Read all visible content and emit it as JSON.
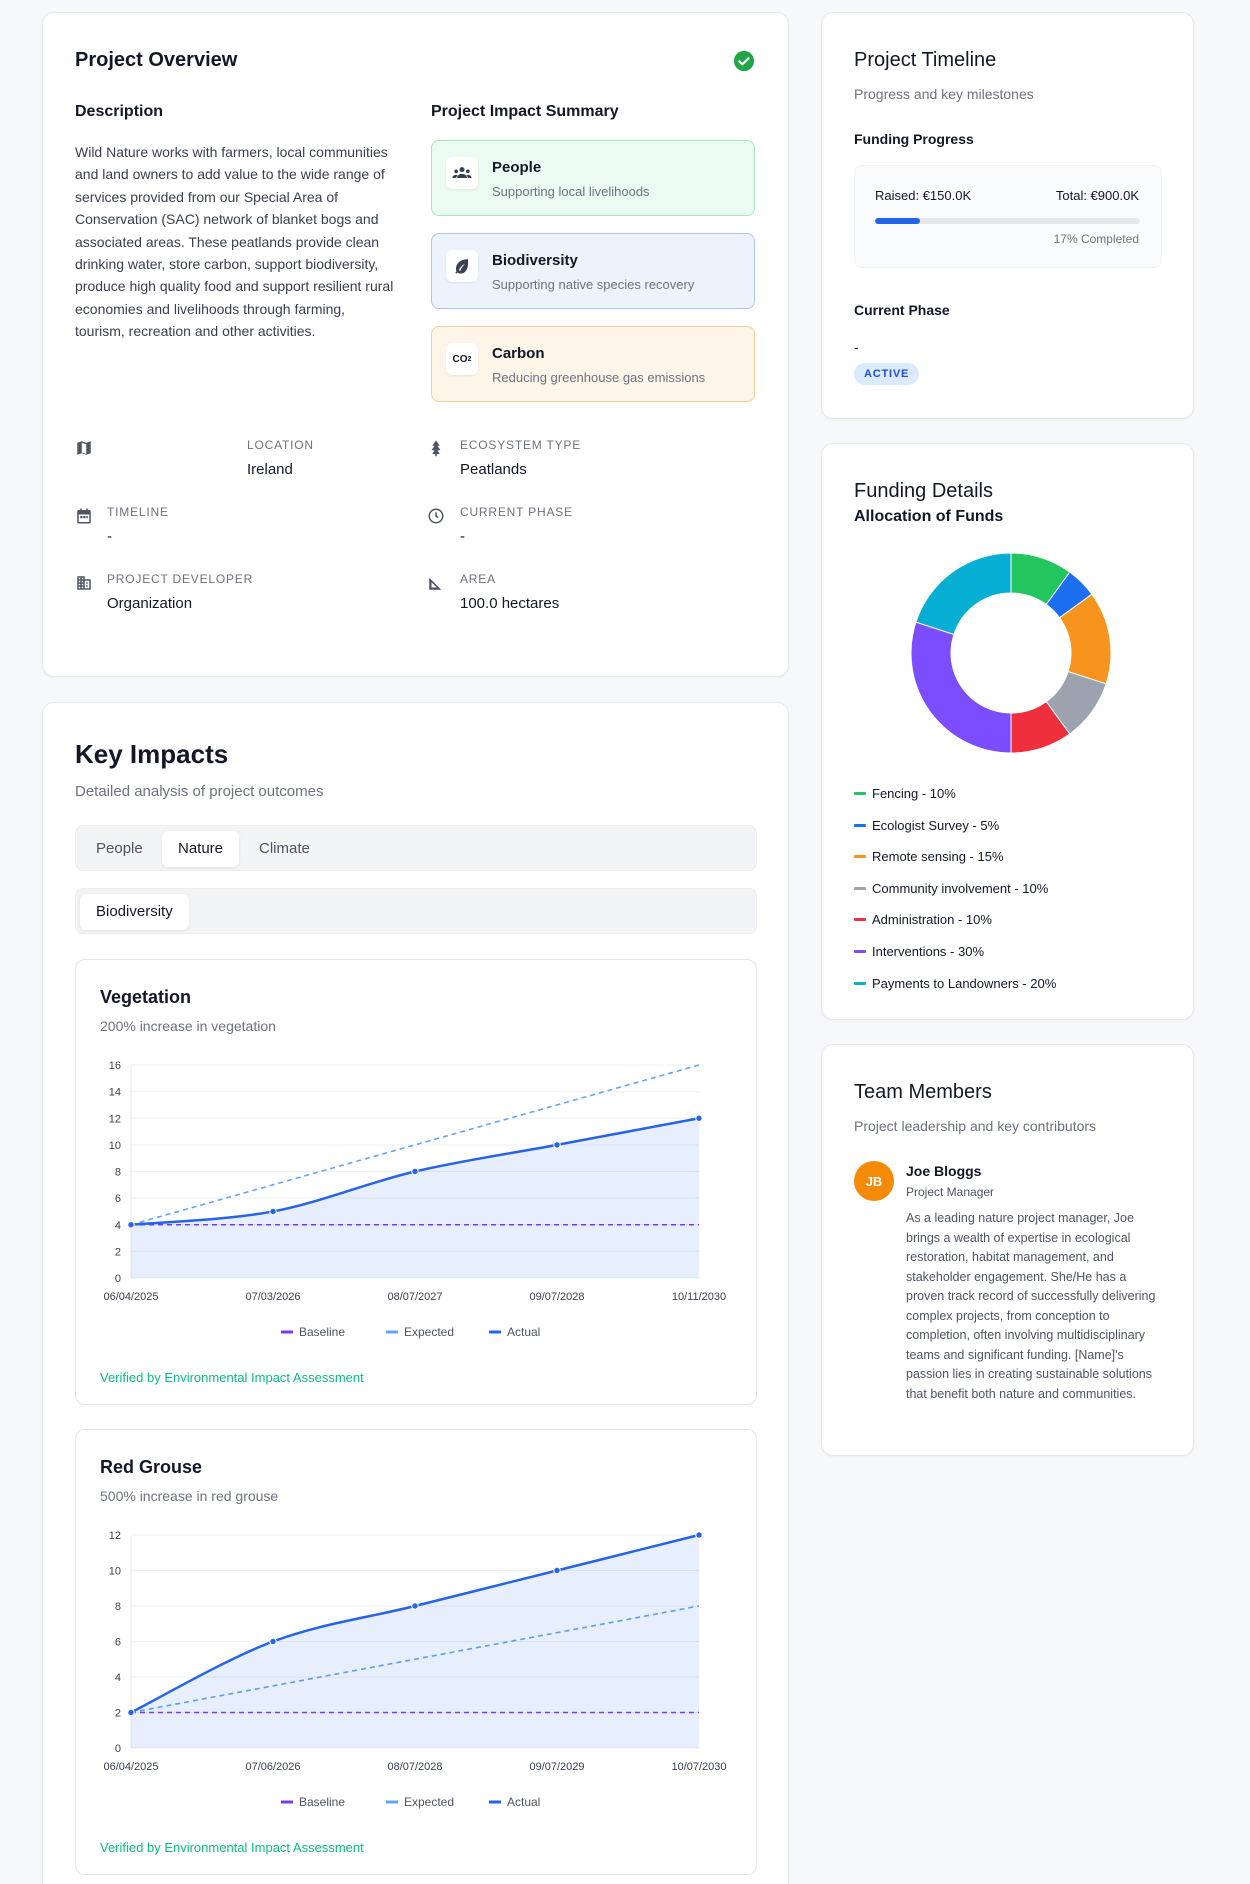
{
  "overview": {
    "title": "Project Overview",
    "description_heading": "Description",
    "description": "Wild Nature works with farmers, local communities and land owners to add value to the wide range of services provided from our Special Area of Conservation (SAC) network of blanket bogs and associated areas. These peatlands provide clean drinking water, store carbon, support biodiversity, produce high quality food and support resilient rural economies and livelihoods through farming, tourism, recreation and other activities.",
    "impact_heading": "Project Impact Summary",
    "impacts": [
      {
        "label": "People",
        "sub": "Supporting local livelihoods",
        "icon": "people-icon"
      },
      {
        "label": "Biodiversity",
        "sub": "Supporting native species recovery",
        "icon": "leaf-icon"
      },
      {
        "label": "Carbon",
        "sub": "Reducing greenhouse gas emissions",
        "icon": "co2-icon"
      }
    ],
    "info": {
      "location_label": "LOCATION",
      "location": "Ireland",
      "ecosystem_label": "ECOSYSTEM TYPE",
      "ecosystem": "Peatlands",
      "timeline_label": "TIMELINE",
      "timeline": "-",
      "phase_label": "CURRENT PHASE",
      "phase": "-",
      "developer_label": "PROJECT DEVELOPER",
      "developer": "Organization",
      "area_label": "AREA",
      "area": "100.0 hectares"
    }
  },
  "impacts": {
    "title": "Key Impacts",
    "subtitle": "Detailed analysis of project outcomes",
    "tabs": [
      "People",
      "Nature",
      "Climate"
    ],
    "active_tab": "Nature",
    "subtabs": [
      "Biodiversity"
    ],
    "verified_text": "Verified by Environmental Impact Assessment",
    "legend": {
      "baseline": "Baseline",
      "expected": "Expected",
      "actual": "Actual"
    }
  },
  "chart_data": [
    {
      "type": "line",
      "title": "Vegetation",
      "subtitle": "200% increase in vegetation",
      "x": [
        "06/04/2025",
        "07/03/2026",
        "08/07/2027",
        "09/07/2028",
        "10/11/2030"
      ],
      "ylim": [
        0,
        16
      ],
      "yticks": [
        0,
        2,
        4,
        6,
        8,
        10,
        12,
        14,
        16
      ],
      "series": [
        {
          "name": "Baseline",
          "values": [
            4,
            4,
            4,
            4,
            4
          ],
          "color": "#7c3aed",
          "style": "dashed"
        },
        {
          "name": "Expected",
          "values": [
            4,
            7,
            10,
            13,
            16
          ],
          "color": "#60a5fa",
          "style": "dashed"
        },
        {
          "name": "Actual",
          "values": [
            4,
            5,
            8,
            10,
            12
          ],
          "color": "#2563eb",
          "style": "solid-area"
        }
      ]
    },
    {
      "type": "line",
      "title": "Red Grouse",
      "subtitle": "500% increase in red grouse",
      "x": [
        "06/04/2025",
        "07/06/2026",
        "08/07/2028",
        "09/07/2029",
        "10/07/2030"
      ],
      "ylim": [
        0,
        12
      ],
      "yticks": [
        0,
        2,
        4,
        6,
        8,
        10,
        12
      ],
      "series": [
        {
          "name": "Baseline",
          "values": [
            2,
            2,
            2,
            2,
            2
          ],
          "color": "#7c3aed",
          "style": "dashed"
        },
        {
          "name": "Expected",
          "values": [
            2,
            3.5,
            5,
            6.5,
            8
          ],
          "color": "#60a5fa",
          "style": "dashed"
        },
        {
          "name": "Actual",
          "values": [
            2,
            6,
            8,
            10,
            12
          ],
          "color": "#2563eb",
          "style": "solid-area"
        }
      ]
    },
    {
      "type": "pie",
      "title": "Allocation of Funds",
      "categories": [
        "Fencing",
        "Ecologist Survey",
        "Remote sensing",
        "Community involvement",
        "Administration",
        "Interventions",
        "Payments to Landowners"
      ],
      "values": [
        10,
        5,
        15,
        10,
        10,
        30,
        20
      ],
      "colors": [
        "#22c55e",
        "#1d6ff2",
        "#f7941d",
        "#9ca3af",
        "#ef2f3c",
        "#7c4dff",
        "#06aed4"
      ],
      "labels": [
        "Fencing - 10%",
        "Ecologist Survey - 5%",
        "Remote sensing - 15%",
        "Community involvement - 10%",
        "Administration - 10%",
        "Interventions - 30%",
        "Payments to Landowners - 20%"
      ]
    }
  ],
  "timeline": {
    "title": "Project Timeline",
    "subtitle": "Progress and key milestones",
    "funding_heading": "Funding Progress",
    "raised": "Raised: €150.0K",
    "total": "Total: €900.0K",
    "progress": 0.17,
    "progress_text": "17% Completed",
    "phase_heading": "Current Phase",
    "phase_value": "-",
    "status": "ACTIVE"
  },
  "funding": {
    "title": "Funding Details",
    "subtitle": "Allocation of Funds"
  },
  "team": {
    "title": "Team Members",
    "subtitle": "Project leadership and key contributors",
    "members": [
      {
        "initials": "JB",
        "name": "Joe Bloggs",
        "role": "Project Manager",
        "bio": "As a leading nature project manager, Joe brings a wealth of expertise in ecological restoration, habitat management, and stakeholder engagement. She/He has a proven track record of successfully delivering complex projects, from conception to completion, often involving multidisciplinary teams and significant funding. [Name]'s passion lies in creating sustainable solutions that benefit both nature and communities."
      }
    ]
  },
  "colors": {
    "accent": "#2563eb",
    "success": "#10b981",
    "avatar": "#f58a07"
  }
}
